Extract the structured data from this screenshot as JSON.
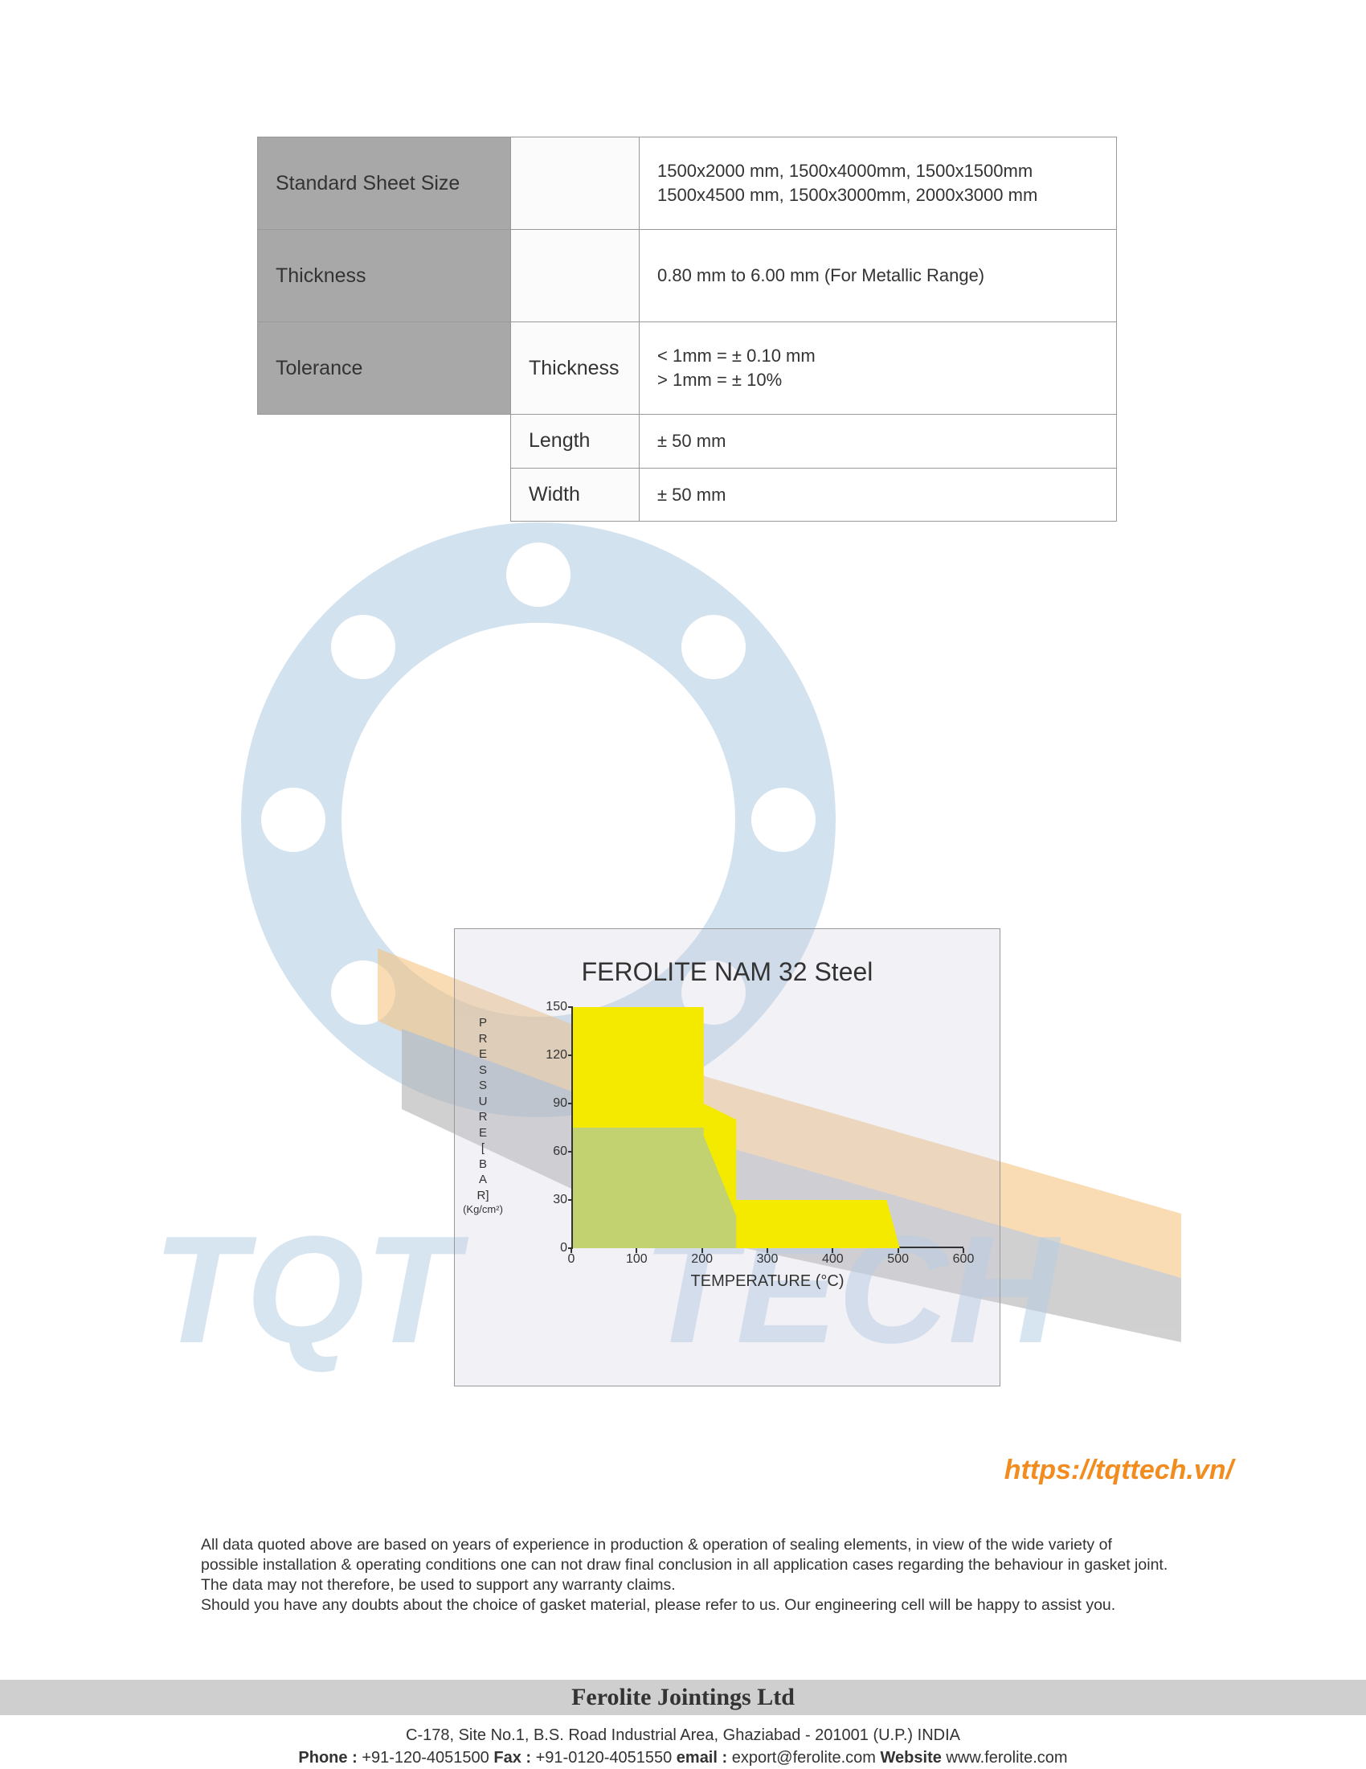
{
  "table": {
    "rows": [
      {
        "header": "Standard Sheet Size",
        "mid": "",
        "value": "1500x2000 mm, 1500x4000mm, 1500x1500mm\n1500x4500 mm, 1500x3000mm, 2000x3000 mm"
      },
      {
        "header": "Thickness",
        "mid": "",
        "value": "0.80 mm to 6.00 mm (For Metallic Range)"
      },
      {
        "header": "Tolerance",
        "mid": "Thickness",
        "value": "< 1mm = ± 0.10 mm\n> 1mm = ± 10%"
      }
    ],
    "subrows": [
      {
        "mid": "Length",
        "value": "± 50 mm"
      },
      {
        "mid": "Width",
        "value": "± 50 mm"
      }
    ],
    "header_bg": "#a8a8a8",
    "border_color": "#999999",
    "text_color": "#333333"
  },
  "chart": {
    "title": "FEROLITE NAM 32 Steel",
    "x_label": "TEMPERATURE (°C)",
    "y_label_letters": [
      "P",
      "R",
      "E",
      "S",
      "S",
      "U",
      "R",
      "E",
      "[",
      "B",
      "A",
      "R]"
    ],
    "y_label_unit": "(Kg/cm²)",
    "x_ticks": [
      0,
      100,
      200,
      300,
      400,
      500,
      600
    ],
    "y_ticks": [
      0,
      30,
      60,
      90,
      120,
      150
    ],
    "xlim": [
      0,
      600
    ],
    "ylim": [
      0,
      150
    ],
    "regions": [
      {
        "name": "max-short-peak",
        "color": "#f4ea00",
        "points": [
          [
            0,
            150
          ],
          [
            200,
            150
          ],
          [
            200,
            90
          ],
          [
            250,
            80
          ],
          [
            250,
            30
          ],
          [
            480,
            30
          ],
          [
            500,
            0
          ],
          [
            0,
            0
          ]
        ]
      },
      {
        "name": "suitable-area",
        "color": "#b9ce85",
        "opacity": 0.85,
        "points": [
          [
            0,
            75
          ],
          [
            200,
            75
          ],
          [
            200,
            70
          ],
          [
            250,
            20
          ],
          [
            250,
            0
          ],
          [
            0,
            0
          ]
        ]
      }
    ],
    "background": "rgba(200,200,220,0.25)"
  },
  "watermark": {
    "url_text": "https://tqttech.vn/",
    "url_color": "#f28c1f",
    "ring_color": "#a9c7e0",
    "arrow_colors": [
      "#f3b45f",
      "#898989"
    ],
    "text_color": "#a9c7e0"
  },
  "disclaimer": {
    "p1": "All data quoted above are based on years of experience in production & operation of sealing elements, in view of the wide variety of possible installation & operating conditions one can not draw final conclusion in all application cases regarding the behaviour in gasket joint. The data may not therefore, be used to support any warranty claims.",
    "p2": "Should you have any doubts about the choice of gasket material, please refer to us. Our engineering cell will be happy to assist you."
  },
  "footer": {
    "company": "Ferolite Jointings Ltd",
    "address": "C-178, Site No.1, B.S. Road Industrial Area, Ghaziabad - 201001 (U.P.) INDIA",
    "phone_label": "Phone :",
    "phone": "+91-120-4051500",
    "fax_label": "Fax :",
    "fax": "+91-0120-4051550",
    "email_label": "email :",
    "email": "export@ferolite.com",
    "website_label": "Website",
    "website": "www.ferolite.com"
  }
}
